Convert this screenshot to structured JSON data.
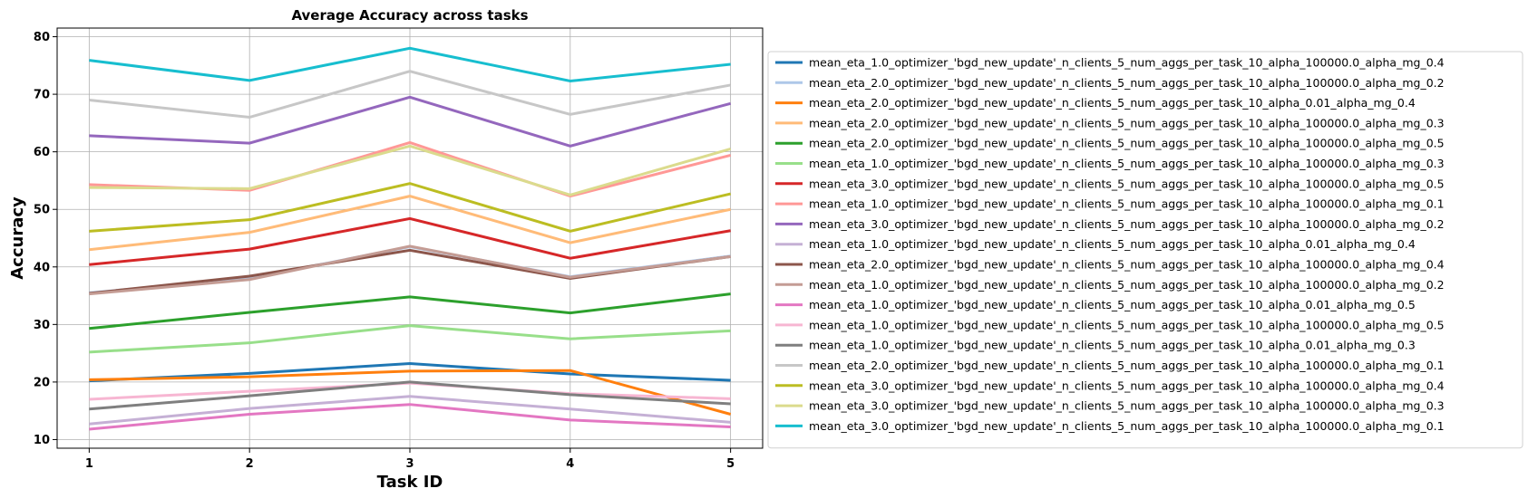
{
  "chart_data": {
    "type": "line",
    "title": "Average Accuracy across tasks",
    "xlabel": "Task ID",
    "ylabel": "Accuracy",
    "x": [
      1,
      2,
      3,
      4,
      5
    ],
    "xlim": [
      0.8,
      5.2
    ],
    "ylim": [
      8.5,
      81.5
    ],
    "yticks": [
      10,
      20,
      30,
      40,
      50,
      60,
      70,
      80
    ],
    "grid": true,
    "legend_position": "right, outside plot",
    "series": [
      {
        "name": "mean_eta_1.0_optimizer_'bgd_new_update'_n_clients_5_num_aggs_per_task_10_alpha_100000.0_alpha_mg_0.4",
        "color": "#1f77b4",
        "values": [
          20.2,
          21.5,
          23.2,
          21.4,
          20.3
        ]
      },
      {
        "name": "mean_eta_2.0_optimizer_'bgd_new_update'_n_clients_5_num_aggs_per_task_10_alpha_100000.0_alpha_mg_0.2",
        "color": "#aec7e8",
        "values": [
          35.5,
          38.0,
          43.5,
          38.3,
          41.9
        ]
      },
      {
        "name": "mean_eta_2.0_optimizer_'bgd_new_update'_n_clients_5_num_aggs_per_task_10_alpha_0.01_alpha_mg_0.4",
        "color": "#ff7f0e",
        "values": [
          20.4,
          20.9,
          21.9,
          22.0,
          14.4
        ]
      },
      {
        "name": "mean_eta_2.0_optimizer_'bgd_new_update'_n_clients_5_num_aggs_per_task_10_alpha_100000.0_alpha_mg_0.3",
        "color": "#ffbb78",
        "values": [
          43.0,
          46.0,
          52.3,
          44.2,
          50.0
        ]
      },
      {
        "name": "mean_eta_2.0_optimizer_'bgd_new_update'_n_clients_5_num_aggs_per_task_10_alpha_100000.0_alpha_mg_0.5",
        "color": "#2ca02c",
        "values": [
          29.3,
          32.1,
          34.8,
          32.0,
          35.3
        ]
      },
      {
        "name": "mean_eta_1.0_optimizer_'bgd_new_update'_n_clients_5_num_aggs_per_task_10_alpha_100000.0_alpha_mg_0.3",
        "color": "#98df8a",
        "values": [
          25.2,
          26.8,
          29.8,
          27.5,
          28.9
        ]
      },
      {
        "name": "mean_eta_3.0_optimizer_'bgd_new_update'_n_clients_5_num_aggs_per_task_10_alpha_100000.0_alpha_mg_0.5",
        "color": "#d62728",
        "values": [
          40.4,
          43.1,
          48.4,
          41.5,
          46.3
        ]
      },
      {
        "name": "mean_eta_1.0_optimizer_'bgd_new_update'_n_clients_5_num_aggs_per_task_10_alpha_100000.0_alpha_mg_0.1",
        "color": "#ff9896",
        "values": [
          54.3,
          53.3,
          61.6,
          52.3,
          59.4
        ]
      },
      {
        "name": "mean_eta_3.0_optimizer_'bgd_new_update'_n_clients_5_num_aggs_per_task_10_alpha_100000.0_alpha_mg_0.2",
        "color": "#9467bd",
        "values": [
          62.8,
          61.5,
          69.5,
          61.0,
          68.4
        ]
      },
      {
        "name": "mean_eta_1.0_optimizer_'bgd_new_update'_n_clients_5_num_aggs_per_task_10_alpha_0.01_alpha_mg_0.4",
        "color": "#c5b0d5",
        "values": [
          12.7,
          15.4,
          17.5,
          15.3,
          13.0
        ]
      },
      {
        "name": "mean_eta_2.0_optimizer_'bgd_new_update'_n_clients_5_num_aggs_per_task_10_alpha_100000.0_alpha_mg_0.4",
        "color": "#8c564b",
        "values": [
          35.4,
          38.4,
          42.9,
          38.0,
          41.8
        ]
      },
      {
        "name": "mean_eta_1.0_optimizer_'bgd_new_update'_n_clients_5_num_aggs_per_task_10_alpha_100000.0_alpha_mg_0.2",
        "color": "#c49c94",
        "values": [
          35.3,
          37.8,
          43.6,
          38.2,
          41.8
        ]
      },
      {
        "name": "mean_eta_1.0_optimizer_'bgd_new_update'_n_clients_5_num_aggs_per_task_10_alpha_0.01_alpha_mg_0.5",
        "color": "#e377c2",
        "values": [
          11.8,
          14.4,
          16.1,
          13.4,
          12.2
        ]
      },
      {
        "name": "mean_eta_1.0_optimizer_'bgd_new_update'_n_clients_5_num_aggs_per_task_10_alpha_100000.0_alpha_mg_0.5",
        "color": "#f7b6d2",
        "values": [
          17.0,
          18.4,
          19.8,
          18.0,
          17.1
        ]
      },
      {
        "name": "mean_eta_1.0_optimizer_'bgd_new_update'_n_clients_5_num_aggs_per_task_10_alpha_0.01_alpha_mg_0.3",
        "color": "#7f7f7f",
        "values": [
          15.3,
          17.6,
          20.0,
          17.8,
          16.2
        ]
      },
      {
        "name": "mean_eta_2.0_optimizer_'bgd_new_update'_n_clients_5_num_aggs_per_task_10_alpha_100000.0_alpha_mg_0.1",
        "color": "#c7c7c7",
        "values": [
          69.0,
          66.0,
          74.0,
          66.5,
          71.6
        ]
      },
      {
        "name": "mean_eta_3.0_optimizer_'bgd_new_update'_n_clients_5_num_aggs_per_task_10_alpha_100000.0_alpha_mg_0.4",
        "color": "#bcbd22",
        "values": [
          46.2,
          48.2,
          54.5,
          46.2,
          52.7
        ]
      },
      {
        "name": "mean_eta_3.0_optimizer_'bgd_new_update'_n_clients_5_num_aggs_per_task_10_alpha_100000.0_alpha_mg_0.3",
        "color": "#dbdb8d",
        "values": [
          53.8,
          53.6,
          61.0,
          52.5,
          60.5
        ]
      },
      {
        "name": "mean_eta_3.0_optimizer_'bgd_new_update'_n_clients_5_num_aggs_per_task_10_alpha_100000.0_alpha_mg_0.1",
        "color": "#17becf",
        "values": [
          75.9,
          72.4,
          78.0,
          72.3,
          75.2
        ]
      }
    ]
  }
}
